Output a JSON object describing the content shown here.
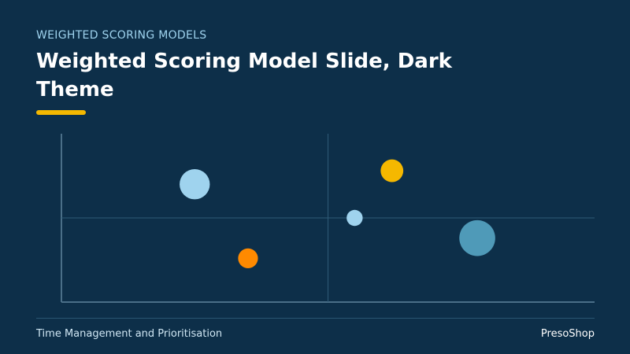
{
  "header": {
    "eyebrow": "WEIGHTED SCORING MODELS",
    "title": "Weighted Scoring Model Slide, Dark Theme"
  },
  "footer": {
    "left_text": "Time Management and Prioritisation",
    "right_text": "PresoShop"
  },
  "colors": {
    "background": "#0d2f49",
    "accent": "#f5b800",
    "axis": "#4a6f88",
    "gridline": "#2f5b77"
  },
  "chart_data": {
    "type": "scatter",
    "xlim": [
      0,
      100
    ],
    "ylim": [
      0,
      100
    ],
    "quadrant_dividers": {
      "x": 50,
      "y": 50
    },
    "points": [
      {
        "x": 25,
        "y": 70,
        "size": 3.2,
        "color": "#9fd3ee"
      },
      {
        "x": 35,
        "y": 26,
        "size": 2.1,
        "color": "#ff8a00"
      },
      {
        "x": 55,
        "y": 50,
        "size": 1.7,
        "color": "#9fd3ee"
      },
      {
        "x": 62,
        "y": 78,
        "size": 2.4,
        "color": "#f5b800"
      },
      {
        "x": 78,
        "y": 38,
        "size": 3.8,
        "color": "#4f9ab8"
      }
    ]
  }
}
